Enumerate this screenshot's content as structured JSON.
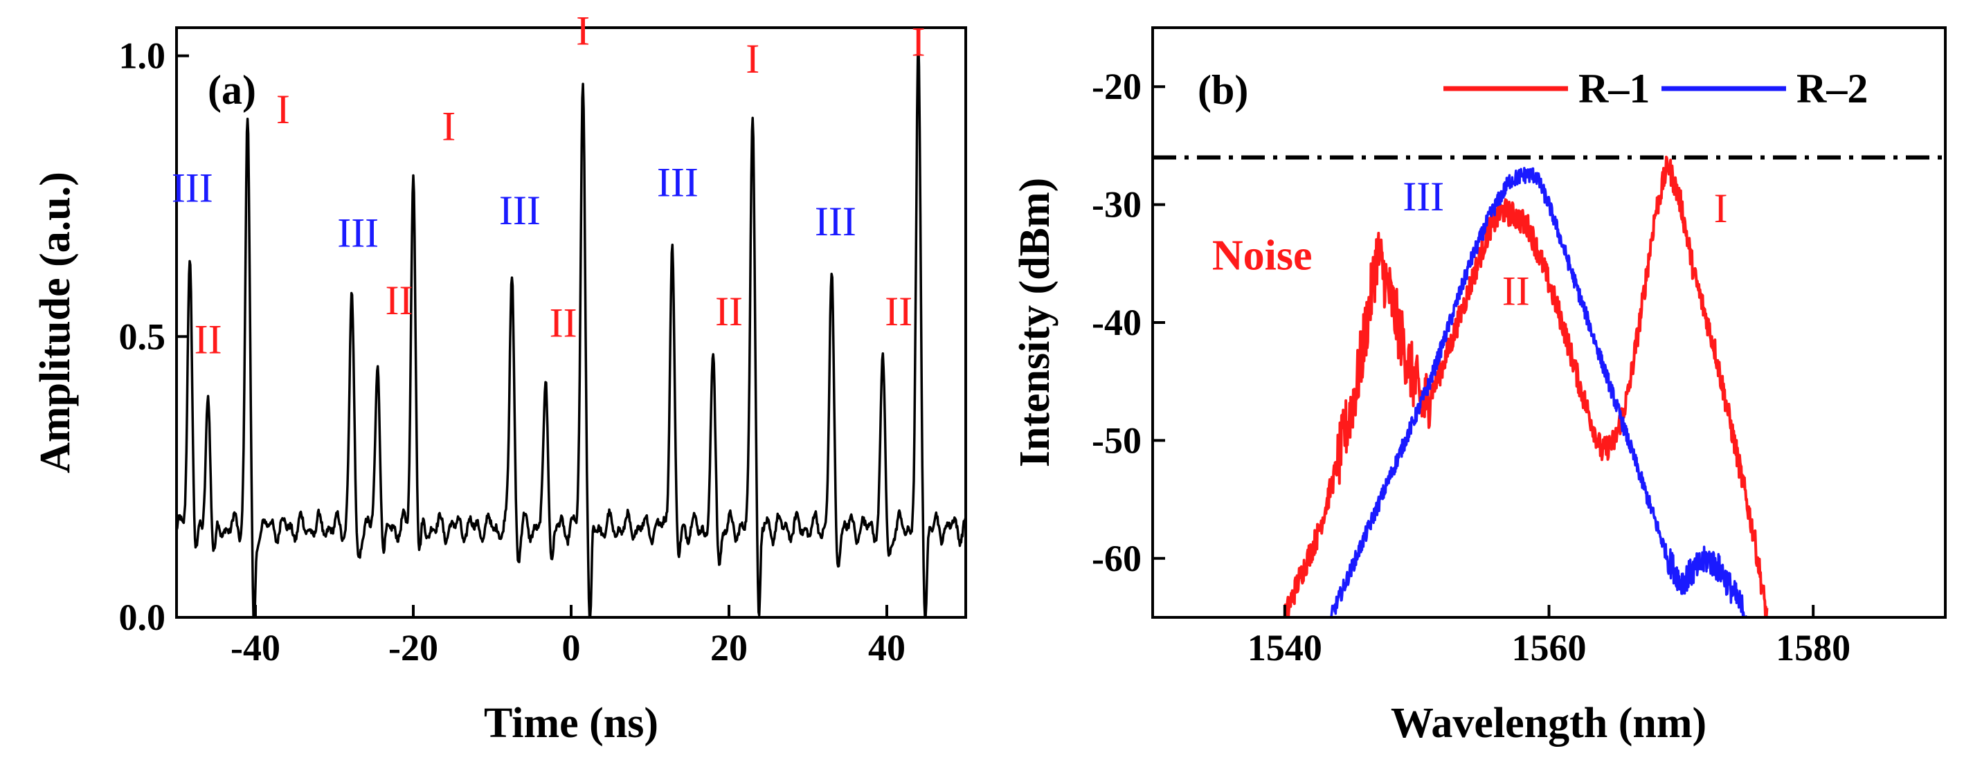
{
  "colors": {
    "red": "#ff1a1a",
    "blue": "#1a1aff",
    "black": "#000000"
  },
  "chart_data": [
    {
      "type": "line",
      "panel_label": "(a)",
      "xlabel": "Time (ns)",
      "ylabel": "Amplitude (a.u.)",
      "xlim": [
        -50,
        50
      ],
      "ylim": [
        0,
        1.05
      ],
      "xticks": [
        -40,
        -20,
        0,
        20,
        40
      ],
      "xtick_labels": [
        "-40",
        "-20",
        "0",
        "20",
        "40"
      ],
      "yticks": [
        0,
        0.5,
        1.0
      ],
      "ytick_labels": [
        "0.0",
        "0.5",
        "1.0"
      ],
      "baseline": 0.16,
      "series": [
        {
          "color": "#000000",
          "pulses": [
            {
              "label": "III",
              "t": -48.3,
              "amp": 0.65
            },
            {
              "label": "II",
              "t": -46.0,
              "amp": 0.4
            },
            {
              "label": "I",
              "t": -41.0,
              "amp": 0.89
            },
            {
              "label": "III",
              "t": -27.8,
              "amp": 0.58
            },
            {
              "label": "II",
              "t": -24.5,
              "amp": 0.46
            },
            {
              "label": "I",
              "t": -20.0,
              "amp": 0.79
            },
            {
              "label": "III",
              "t": -7.5,
              "amp": 0.62
            },
            {
              "label": "II",
              "t": -3.2,
              "amp": 0.42
            },
            {
              "label": "I",
              "t": 1.5,
              "amp": 0.96
            },
            {
              "label": "III",
              "t": 12.8,
              "amp": 0.67
            },
            {
              "label": "II",
              "t": 18.0,
              "amp": 0.45
            },
            {
              "label": "I",
              "t": 23.0,
              "amp": 0.91
            },
            {
              "label": "III",
              "t": 33.0,
              "amp": 0.6
            },
            {
              "label": "II",
              "t": 39.5,
              "amp": 0.45
            },
            {
              "label": "I",
              "t": 44.0,
              "amp": 1.0
            }
          ],
          "dips": [
            {
              "t": -40.2,
              "amp": 0.0
            },
            {
              "t": 2.4,
              "amp": 0.0
            },
            {
              "t": 23.8,
              "amp": 0.04
            },
            {
              "t": 44.9,
              "amp": 0.04
            }
          ]
        }
      ],
      "annotations": [
        {
          "text": "III",
          "x": -48.0,
          "y": 0.74,
          "color": "#1a1aff"
        },
        {
          "text": "II",
          "x": -46.0,
          "y": 0.47,
          "color": "#ff1a1a"
        },
        {
          "text": "I",
          "x": -36.5,
          "y": 0.88,
          "color": "#ff1a1a"
        },
        {
          "text": "III",
          "x": -27.0,
          "y": 0.66,
          "color": "#1a1aff"
        },
        {
          "text": "II",
          "x": -21.8,
          "y": 0.54,
          "color": "#ff1a1a"
        },
        {
          "text": "I",
          "x": -15.5,
          "y": 0.85,
          "color": "#ff1a1a"
        },
        {
          "text": "III",
          "x": -6.5,
          "y": 0.7,
          "color": "#1a1aff"
        },
        {
          "text": "II",
          "x": -1.0,
          "y": 0.5,
          "color": "#ff1a1a"
        },
        {
          "text": "I",
          "x": 1.5,
          "y": 1.02,
          "color": "#ff1a1a"
        },
        {
          "text": "III",
          "x": 13.5,
          "y": 0.75,
          "color": "#1a1aff"
        },
        {
          "text": "II",
          "x": 20.0,
          "y": 0.52,
          "color": "#ff1a1a"
        },
        {
          "text": "I",
          "x": 23.0,
          "y": 0.97,
          "color": "#ff1a1a"
        },
        {
          "text": "III",
          "x": 33.5,
          "y": 0.68,
          "color": "#1a1aff"
        },
        {
          "text": "II",
          "x": 41.5,
          "y": 0.52,
          "color": "#ff1a1a"
        },
        {
          "text": "I",
          "x": 44.0,
          "y": 1.0,
          "color": "#ff1a1a"
        }
      ]
    },
    {
      "type": "line",
      "panel_label": "(b)",
      "xlabel": "Wavelength (nm)",
      "ylabel": "Intensity (dBm)",
      "xlim": [
        1530,
        1590
      ],
      "ylim": [
        -65,
        -15
      ],
      "xticks": [
        1540,
        1560,
        1580
      ],
      "xtick_labels": [
        "1540",
        "1560",
        "1580"
      ],
      "yticks": [
        -60,
        -50,
        -40,
        -30,
        -20
      ],
      "ytick_labels": [
        "-60",
        "-50",
        "-40",
        "-30",
        "-20"
      ],
      "reference_line": {
        "y": -26.0,
        "style": "dash-dot",
        "color": "#000000"
      },
      "legend": {
        "position": "top-right"
      },
      "series": [
        {
          "name": "R–1",
          "color": "#ff1a1a",
          "points": [
            [
              1540.0,
              -65
            ],
            [
              1541.0,
              -62
            ],
            [
              1542.5,
              -58
            ],
            [
              1544.0,
              -52
            ],
            [
              1545.5,
              -45
            ],
            [
              1546.5,
              -38
            ],
            [
              1547.0,
              -34
            ],
            [
              1547.8,
              -37
            ],
            [
              1548.5,
              -40
            ],
            [
              1549.5,
              -44
            ],
            [
              1550.5,
              -47
            ],
            [
              1551.5,
              -45
            ],
            [
              1552.5,
              -42
            ],
            [
              1554.0,
              -37
            ],
            [
              1555.5,
              -32
            ],
            [
              1556.5,
              -30.5
            ],
            [
              1557.5,
              -31
            ],
            [
              1558.5,
              -32
            ],
            [
              1559.5,
              -35
            ],
            [
              1561.0,
              -40
            ],
            [
              1562.5,
              -46
            ],
            [
              1564.0,
              -51
            ],
            [
              1565.0,
              -50
            ],
            [
              1566.0,
              -46
            ],
            [
              1567.0,
              -39
            ],
            [
              1568.0,
              -31
            ],
            [
              1569.0,
              -26.5
            ],
            [
              1570.0,
              -30
            ],
            [
              1571.0,
              -36
            ],
            [
              1572.5,
              -42
            ],
            [
              1574.0,
              -50
            ],
            [
              1575.5,
              -58
            ],
            [
              1576.5,
              -65
            ]
          ]
        },
        {
          "name": "R–2",
          "color": "#1a1aff",
          "points": [
            [
              1543.5,
              -65
            ],
            [
              1545.0,
              -61
            ],
            [
              1546.5,
              -57
            ],
            [
              1548.0,
              -53
            ],
            [
              1549.5,
              -49
            ],
            [
              1551.0,
              -45
            ],
            [
              1552.5,
              -40
            ],
            [
              1554.0,
              -35
            ],
            [
              1555.5,
              -31
            ],
            [
              1557.0,
              -28
            ],
            [
              1558.0,
              -27.5
            ],
            [
              1559.0,
              -27.5
            ],
            [
              1560.0,
              -30
            ],
            [
              1561.5,
              -35
            ],
            [
              1563.0,
              -40
            ],
            [
              1564.5,
              -45
            ],
            [
              1566.0,
              -50
            ],
            [
              1567.5,
              -55
            ],
            [
              1569.0,
              -60
            ],
            [
              1570.0,
              -62
            ],
            [
              1571.0,
              -61
            ],
            [
              1572.0,
              -60
            ],
            [
              1573.0,
              -61
            ],
            [
              1574.0,
              -63
            ],
            [
              1575.0,
              -65
            ]
          ]
        }
      ],
      "annotations": [
        {
          "text": "Noise",
          "x": 1534.5,
          "y": -35.5,
          "color": "#ff1a1a",
          "bold": true
        },
        {
          "text": "III",
          "x": 1550.5,
          "y": -30.5,
          "color": "#1a1aff"
        },
        {
          "text": "II",
          "x": 1557.5,
          "y": -38.5,
          "color": "#ff1a1a"
        },
        {
          "text": "I",
          "x": 1573.0,
          "y": -31.5,
          "color": "#ff1a1a"
        }
      ]
    }
  ]
}
